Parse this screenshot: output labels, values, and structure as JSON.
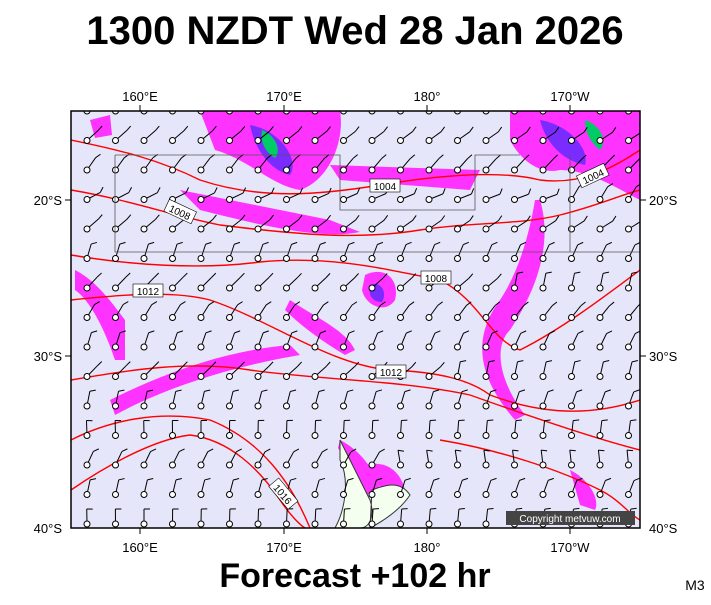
{
  "title": "1300 NZDT Wed 28 Jan 2026",
  "footer": "Forecast +102 hr",
  "model": "M3",
  "copyright": "Copyright metvuw.com",
  "longitude_labels": [
    "160°E",
    "170°E",
    "180°",
    "170°W"
  ],
  "latitude_labels": [
    "20°S",
    "30°S",
    "40°S"
  ],
  "isobar_labels": [
    "1004",
    "1004",
    "1008",
    "1008",
    "1012",
    "1012",
    "1016"
  ]
}
